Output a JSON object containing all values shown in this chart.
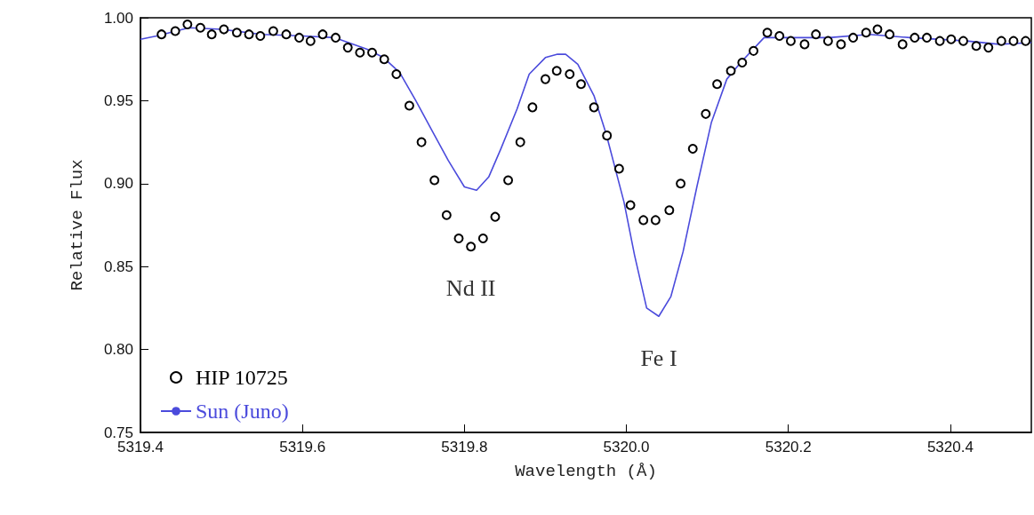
{
  "chart_data": {
    "type": "scatter",
    "xlabel": "Wavelength (Å)",
    "ylabel": "Relative Flux",
    "xlim": [
      5319.4,
      5320.5
    ],
    "xticks": [
      5319.4,
      5319.6,
      5319.8,
      {
        "value": 5320.0,
        "label": "5320.0"
      },
      5320.2,
      5320.4
    ],
    "ylim": [
      0.75,
      1.0
    ],
    "yticks": [
      0.75,
      {
        "value": 0.8,
        "label": "0.80"
      },
      0.85,
      {
        "value": 0.9,
        "label": "0.90"
      },
      0.95,
      {
        "value": 1.0,
        "label": "1.00"
      }
    ],
    "grid": false,
    "legend": "bottom left",
    "annotations": [
      {
        "text": "Nd II",
        "x": 5319.808,
        "y": 0.862
      },
      {
        "text": "Fe I",
        "x": 5320.04,
        "y": 0.82
      }
    ],
    "series": [
      {
        "name": "HIP 10725",
        "marker": "circle",
        "color": "#000000",
        "x": [
          5319.426,
          5319.443,
          5319.458,
          5319.474,
          5319.488,
          5319.503,
          5319.519,
          5319.534,
          5319.548,
          5319.564,
          5319.58,
          5319.596,
          5319.61,
          5319.625,
          5319.641,
          5319.656,
          5319.671,
          5319.686,
          5319.701,
          5319.716,
          5319.732,
          5319.747,
          5319.763,
          5319.778,
          5319.793,
          5319.808,
          5319.823,
          5319.838,
          5319.854,
          5319.869,
          5319.884,
          5319.9,
          5319.914,
          5319.93,
          5319.944,
          5319.96,
          5319.976,
          5319.991,
          5320.005,
          5320.021,
          5320.036,
          5320.053,
          5320.067,
          5320.082,
          5320.098,
          5320.112,
          5320.129,
          5320.143,
          5320.157,
          5320.174,
          5320.189,
          5320.203,
          5320.22,
          5320.234,
          5320.249,
          5320.265,
          5320.28,
          5320.296,
          5320.31,
          5320.325,
          5320.341,
          5320.356,
          5320.371,
          5320.387,
          5320.401,
          5320.416,
          5320.432,
          5320.447,
          5320.463,
          5320.478,
          5320.493
        ],
        "values": [
          0.99,
          0.992,
          0.996,
          0.994,
          0.99,
          0.993,
          0.991,
          0.99,
          0.989,
          0.992,
          0.99,
          0.988,
          0.986,
          0.99,
          0.988,
          0.982,
          0.979,
          0.979,
          0.975,
          0.966,
          0.947,
          0.925,
          0.902,
          0.881,
          0.867,
          0.862,
          0.867,
          0.88,
          0.902,
          0.925,
          0.946,
          0.963,
          0.968,
          0.966,
          0.96,
          0.946,
          0.929,
          0.909,
          0.887,
          0.878,
          0.878,
          0.884,
          0.9,
          0.921,
          0.942,
          0.96,
          0.968,
          0.973,
          0.98,
          0.991,
          0.989,
          0.986,
          0.984,
          0.99,
          0.986,
          0.984,
          0.988,
          0.991,
          0.993,
          0.99,
          0.984,
          0.988,
          0.988,
          0.986,
          0.987,
          0.986,
          0.983,
          0.982,
          0.986,
          0.986,
          0.986
        ]
      },
      {
        "name": "Sun (Juno)",
        "type": "line",
        "marker": "none",
        "line_style": "solid",
        "color": "#4b4bdc",
        "x": [
          5319.4,
          5319.42,
          5319.46,
          5319.5,
          5319.55,
          5319.6,
          5319.64,
          5319.68,
          5319.7,
          5319.72,
          5319.74,
          5319.76,
          5319.78,
          5319.8,
          5319.815,
          5319.83,
          5319.845,
          5319.865,
          5319.88,
          5319.9,
          5319.915,
          5319.925,
          5319.94,
          5319.96,
          5319.975,
          5319.997,
          5320.01,
          5320.025,
          5320.04,
          5320.055,
          5320.07,
          5320.087,
          5320.105,
          5320.124,
          5320.141,
          5320.17,
          5320.25,
          5320.3,
          5320.35,
          5320.42,
          5320.46,
          5320.5
        ],
        "values": [
          0.987,
          0.989,
          0.994,
          0.993,
          0.99,
          0.989,
          0.988,
          0.981,
          0.976,
          0.967,
          0.95,
          0.932,
          0.914,
          0.898,
          0.896,
          0.904,
          0.921,
          0.945,
          0.966,
          0.976,
          0.978,
          0.978,
          0.972,
          0.953,
          0.93,
          0.889,
          0.857,
          0.825,
          0.82,
          0.832,
          0.859,
          0.898,
          0.937,
          0.963,
          0.973,
          0.988,
          0.988,
          0.99,
          0.988,
          0.986,
          0.984,
          0.985
        ]
      }
    ]
  }
}
